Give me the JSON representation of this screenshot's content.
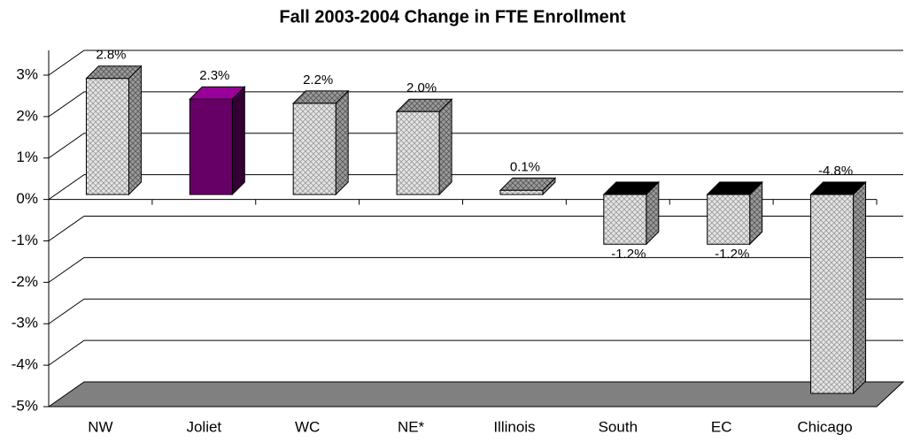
{
  "chart_data": {
    "type": "bar3d",
    "title": "Fall 2003-2004 Change in FTE Enrollment",
    "categories": [
      "NW",
      "Joliet",
      "WC",
      "NE*",
      "Illinois",
      "South",
      "EC",
      "Chicago"
    ],
    "values": [
      2.8,
      2.3,
      2.2,
      2.0,
      0.1,
      -1.2,
      -1.2,
      -4.8
    ],
    "value_labels": [
      "2.8%",
      "2.3%",
      "2.2%",
      "2.0%",
      "0.1%",
      "-1.2%",
      "-1.2%",
      "-4.8%"
    ],
    "colors": [
      "#c8c8c8",
      "#660066",
      "#c8c8c8",
      "#c8c8c8",
      "#c8c8c8",
      "#c8c8c8",
      "#c8c8c8",
      "#c8c8c8"
    ],
    "ylim": [
      -5,
      3
    ],
    "yticks": [
      {
        "value": -5,
        "label": "-5%"
      },
      {
        "value": -4,
        "label": "-4%"
      },
      {
        "value": -3,
        "label": "-3%"
      },
      {
        "value": -2,
        "label": "-2%"
      },
      {
        "value": -1,
        "label": "-1%"
      },
      {
        "value": 0,
        "label": "0%"
      },
      {
        "value": 1,
        "label": "1%"
      },
      {
        "value": 2,
        "label": "2%"
      },
      {
        "value": 3,
        "label": "3%"
      }
    ],
    "grid": true
  }
}
